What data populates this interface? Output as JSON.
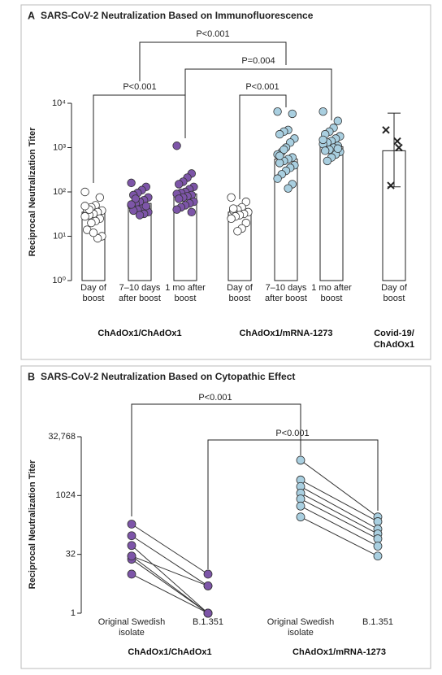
{
  "chart_data": [
    {
      "type": "bar",
      "panel": "A",
      "title": "SARS-CoV-2 Neutralization Based on Immunofluorescence",
      "y_label": "Reciprocal Neutralization Titer",
      "log_scale": true,
      "ylim": [
        1,
        10000
      ],
      "yticks": [
        {
          "value": 1,
          "label": "10⁰"
        },
        {
          "value": 10,
          "label": "10¹"
        },
        {
          "value": 100,
          "label": "10²"
        },
        {
          "value": 1000,
          "label": "10³"
        },
        {
          "value": 10000,
          "label": "10⁴"
        }
      ],
      "categories": [
        "Day of boost",
        "7–10 days after boost",
        "1 mo after boost",
        "Day of boost",
        "7–10 days after boost",
        "1 mo after boost",
        "Day of boost"
      ],
      "groups": [
        "ChAdOx1/ChAdOx1",
        "ChAdOx1/mRNA-1273",
        "Covid-19/ ChAdOx1"
      ],
      "values": [
        35,
        55,
        90,
        35,
        550,
        1050,
        850
      ],
      "errors": [
        null,
        null,
        null,
        null,
        null,
        null,
        [
          130,
          6000
        ]
      ],
      "colors": [
        "#ffffff",
        "#7d55a8",
        "#7d55a8",
        "#ffffff",
        "#a9cfe0",
        "#a9cfe0",
        "#222222"
      ],
      "markers": [
        "circle",
        "circle",
        "circle",
        "circle",
        "circle",
        "circle",
        "x"
      ],
      "points": [
        [
          100,
          75,
          50,
          45,
          40,
          38,
          35,
          32,
          30,
          28,
          25,
          22,
          20,
          14,
          10,
          9,
          12,
          40,
          48
        ],
        [
          160,
          130,
          110,
          95,
          85,
          75,
          65,
          60,
          55,
          50,
          45,
          42,
          40,
          38,
          35,
          32,
          30,
          70,
          52,
          48
        ],
        [
          1100,
          260,
          210,
          170,
          150,
          130,
          115,
          100,
          95,
          90,
          85,
          80,
          75,
          70,
          60,
          55,
          50,
          45,
          40,
          35
        ],
        [
          75,
          60,
          45,
          40,
          38,
          35,
          32,
          30,
          28,
          25,
          20,
          15,
          13,
          42
        ],
        [
          6500,
          5800,
          2500,
          2300,
          2000,
          1600,
          1300,
          1000,
          800,
          700,
          600,
          550,
          500,
          450,
          400,
          350,
          300,
          250,
          200,
          150,
          120,
          900,
          650
        ],
        [
          6500,
          4000,
          2800,
          2300,
          2000,
          1800,
          1600,
          1400,
          1300,
          1200,
          1100,
          1000,
          900,
          850,
          800,
          700,
          600,
          500,
          1500,
          950
        ],
        [
          2500,
          1400,
          1000,
          140
        ]
      ],
      "annotations": [
        "P<0.001",
        "P=0.004",
        "P<0.001",
        "P<0.001"
      ]
    },
    {
      "type": "line",
      "panel": "B",
      "title": "SARS-CoV-2 Neutralization Based on Cytopathic Effect",
      "y_label": "Reciprocal Neutralization Titer",
      "log_scale": true,
      "ylim": [
        1,
        32768
      ],
      "yticks": [
        1,
        32,
        1024,
        {
          "value": 32768,
          "label": "32,768"
        }
      ],
      "categories": [
        "Original Swedish isolate",
        "B.1.351",
        "Original Swedish isolate",
        "B.1.351"
      ],
      "groups": [
        {
          "name": "ChAdOx1/ChAdOx1",
          "color": "#7d55a8",
          "before": [
            190,
            96,
            54,
            29,
            24,
            29,
            10
          ],
          "after": [
            10,
            5,
            1,
            1,
            1,
            5,
            1
          ]
        },
        {
          "name": "ChAdOx1/mRNA-1273",
          "color": "#a9cfe0",
          "before": [
            8200,
            2560,
            1740,
            1180,
            840,
            550,
            290
          ],
          "after": [
            290,
            220,
            142,
            107,
            80,
            52,
            29
          ]
        }
      ],
      "annotations": [
        "P<0.001",
        "P<0.001"
      ]
    }
  ]
}
